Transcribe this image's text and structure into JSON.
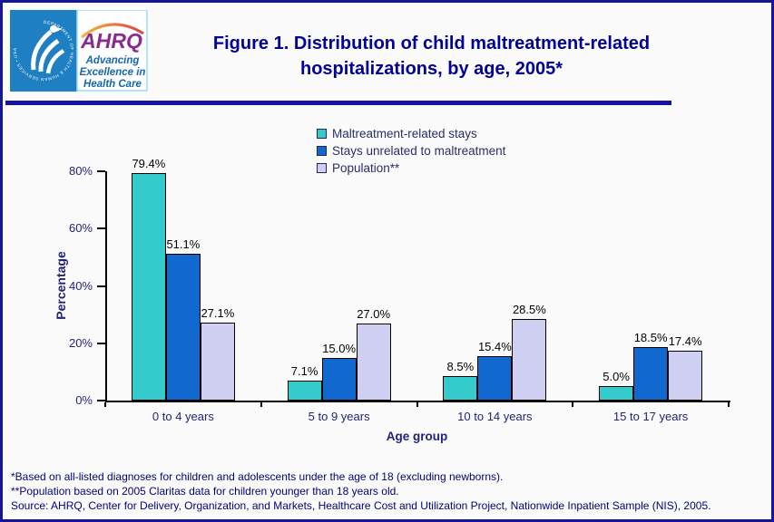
{
  "header": {
    "title_line1": "Figure 1. Distribution of child maltreatment-related",
    "title_line2": "hospitalizations, by age, 2005*",
    "logo": {
      "hhs_ring_text": "DEPARTMENT OF HEALTH & HUMAN SERVICES • USA",
      "ahrq_acronym": "AHRQ",
      "tagline_line1": "Advancing",
      "tagline_line2": "Excellence in",
      "tagline_line3": "Health Care"
    }
  },
  "chart_data": {
    "type": "bar",
    "title": "Figure 1. Distribution of child maltreatment-related hospitalizations, by age, 2005*",
    "categories": [
      "0 to 4 years",
      "5 to 9 years",
      "10 to 14 years",
      "15 to 17 years"
    ],
    "series": [
      {
        "name": "Maltreatment-related stays",
        "color": "#33CBCC",
        "values": [
          79.4,
          7.1,
          8.5,
          5.0
        ]
      },
      {
        "name": "Stays unrelated to maltreatment",
        "color": "#1168CE",
        "values": [
          51.1,
          15.0,
          15.4,
          18.5
        ]
      },
      {
        "name": "Population**",
        "color": "#CFCFF2",
        "values": [
          27.1,
          27.0,
          28.5,
          17.4
        ]
      }
    ],
    "data_label_format": "0.0%",
    "xlabel": "Age group",
    "ylabel": "Percentage",
    "ylim": [
      0,
      80
    ],
    "yticks": [
      0,
      20,
      40,
      60,
      80
    ],
    "ytick_labels": [
      "0%",
      "20%",
      "40%",
      "60%",
      "80%"
    ],
    "grid": false,
    "legend_position": "top-center"
  },
  "footnotes": {
    "lines": [
      "*Based on all-listed diagnoses for children and adolescents under the age of 18 (excluding newborns).",
      "**Population based on 2005 Claritas data for children younger than 18 years old.",
      "Source: AHRQ, Center for Delivery, Organization, and Markets, Healthcare Cost and Utilization Project, Nationwide Inpatient Sample (NIS), 2005."
    ]
  },
  "appearance": {
    "page_border_color": "#15159B",
    "header_rule_color": "#1414A0",
    "title_color": "#000099",
    "axis_text_color": "#22227B",
    "footnote_color": "#00007D",
    "hhs_logo_blue": "#1E7FC2",
    "ahrq_purple": "#8A2A8F",
    "ahrq_tagline_blue": "#1566B0",
    "ahrq_swoosh_orange": "#F59B2E",
    "ahrq_swoosh_red": "#E0424B"
  }
}
